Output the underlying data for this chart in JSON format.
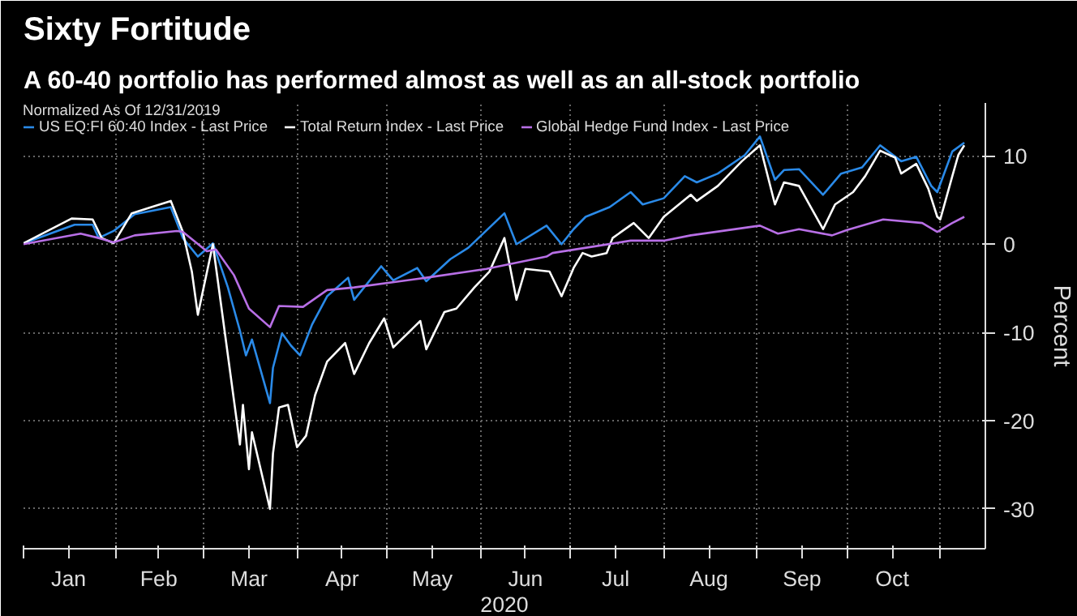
{
  "chart_data": {
    "type": "line",
    "title": "Sixty Fortitude",
    "subtitle": "A 60-40 portfolio has performed almost as well as an all-stock portfolio",
    "xlabel": "2020",
    "ylabel": "Percent",
    "legend_title": "Normalized As Of 12/31/2019",
    "legend": "top",
    "grid": true,
    "line_style": "solid",
    "marker": "none",
    "xlim": [
      "2020-01-01",
      "2020-11-16"
    ],
    "ylim": [
      -34.5,
      16
    ],
    "yticks": [
      -30,
      -20,
      -10,
      0,
      10
    ],
    "xticks": [
      {
        "value": "2020-01-01",
        "label": null
      },
      {
        "value": "2020-01-16",
        "label": "Jan"
      },
      {
        "value": "2020-02-01",
        "label": null
      },
      {
        "value": "2020-02-15",
        "label": "Feb"
      },
      {
        "value": "2020-03-01",
        "label": null
      },
      {
        "value": "2020-03-16",
        "label": "Mar"
      },
      {
        "value": "2020-04-01",
        "label": null
      },
      {
        "value": "2020-04-16",
        "label": "Apr"
      },
      {
        "value": "2020-05-01",
        "label": null
      },
      {
        "value": "2020-05-16",
        "label": "May"
      },
      {
        "value": "2020-06-01",
        "label": null
      },
      {
        "value": "2020-06-16",
        "label": "Jun"
      },
      {
        "value": "2020-07-01",
        "label": null
      },
      {
        "value": "2020-07-16",
        "label": "Jul"
      },
      {
        "value": "2020-08-01",
        "label": null
      },
      {
        "value": "2020-08-16",
        "label": "Aug"
      },
      {
        "value": "2020-09-01",
        "label": null
      },
      {
        "value": "2020-09-16",
        "label": "Sep"
      },
      {
        "value": "2020-10-01",
        "label": null
      },
      {
        "value": "2020-10-16",
        "label": "Oct"
      },
      {
        "value": "2020-11-01",
        "label": null
      }
    ],
    "series": [
      {
        "name": "US EQ:FI 60:40 Index - Last Price",
        "color": "#2a8ae8",
        "x": [
          "2020-01-01",
          "2020-01-18",
          "2020-01-24",
          "2020-01-26",
          "2020-01-31",
          "2020-02-07",
          "2020-02-19",
          "2020-02-23",
          "2020-02-28",
          "2020-03-04",
          "2020-03-09",
          "2020-03-13",
          "2020-03-15",
          "2020-03-17",
          "2020-03-23",
          "2020-03-24",
          "2020-03-27",
          "2020-03-30",
          "2020-04-02",
          "2020-04-06",
          "2020-04-11",
          "2020-04-18",
          "2020-04-20",
          "2020-04-29",
          "2020-05-03",
          "2020-05-11",
          "2020-05-14",
          "2020-05-22",
          "2020-05-28",
          "2020-06-09",
          "2020-06-13",
          "2020-06-23",
          "2020-06-28",
          "2020-07-02",
          "2020-07-06",
          "2020-07-14",
          "2020-07-21",
          "2020-07-25",
          "2020-08-01",
          "2020-08-08",
          "2020-08-12",
          "2020-08-19",
          "2020-08-28",
          "2020-09-02",
          "2020-09-07",
          "2020-09-10",
          "2020-09-15",
          "2020-09-23",
          "2020-09-29",
          "2020-10-06",
          "2020-10-12",
          "2020-10-19",
          "2020-10-24",
          "2020-10-29",
          "2020-10-31",
          "2020-11-05",
          "2020-11-09"
        ],
        "values": [
          0.1,
          2.2,
          2.2,
          0.7,
          1.5,
          3.4,
          4.2,
          0.7,
          -1.4,
          0.1,
          -4.9,
          -9.8,
          -12.6,
          -10.8,
          -18.0,
          -14.0,
          -10.1,
          -11.5,
          -12.6,
          -9.1,
          -5.9,
          -3.8,
          -6.3,
          -2.5,
          -4.1,
          -2.7,
          -4.2,
          -1.7,
          -0.4,
          3.5,
          0,
          2.1,
          0,
          1.7,
          3.1,
          4.2,
          5.9,
          4.5,
          5.2,
          7.7,
          7.0,
          8.0,
          10.1,
          12.2,
          7.3,
          8.4,
          8.5,
          5.6,
          8.0,
          8.7,
          11.2,
          9.4,
          9.9,
          6.6,
          5.9,
          10.5,
          11.5
        ]
      },
      {
        "name": "Total Return Index - Last Price",
        "color": "#ffffff",
        "x": [
          "2020-01-01",
          "2020-01-17",
          "2020-01-24",
          "2020-01-27",
          "2020-01-31",
          "2020-02-06",
          "2020-02-19",
          "2020-02-23",
          "2020-02-26",
          "2020-02-28",
          "2020-03-04",
          "2020-03-09",
          "2020-03-13",
          "2020-03-14",
          "2020-03-16",
          "2020-03-17",
          "2020-03-23",
          "2020-03-24",
          "2020-03-26",
          "2020-03-29",
          "2020-04-01",
          "2020-04-04",
          "2020-04-07",
          "2020-04-11",
          "2020-04-17",
          "2020-04-20",
          "2020-04-25",
          "2020-04-30",
          "2020-05-03",
          "2020-05-12",
          "2020-05-14",
          "2020-05-20",
          "2020-05-24",
          "2020-05-30",
          "2020-06-04",
          "2020-06-09",
          "2020-06-13",
          "2020-06-16",
          "2020-06-24",
          "2020-06-28",
          "2020-07-02",
          "2020-07-05",
          "2020-07-08",
          "2020-07-13",
          "2020-07-15",
          "2020-07-22",
          "2020-07-27",
          "2020-08-01",
          "2020-08-10",
          "2020-08-12",
          "2020-08-19",
          "2020-08-27",
          "2020-09-02",
          "2020-09-07",
          "2020-09-10",
          "2020-09-15",
          "2020-09-23",
          "2020-09-27",
          "2020-10-03",
          "2020-10-07",
          "2020-10-12",
          "2020-10-17",
          "2020-10-19",
          "2020-10-24",
          "2020-10-28",
          "2020-10-31",
          "2020-11-01",
          "2020-11-05",
          "2020-11-07",
          "2020-11-09"
        ],
        "values": [
          0.1,
          2.9,
          2.8,
          0.7,
          0.1,
          3.5,
          4.9,
          1.4,
          -3.1,
          -8.0,
          0,
          -12.6,
          -22.7,
          -18.2,
          -25.5,
          -21.3,
          -30.0,
          -23.7,
          -18.5,
          -18.2,
          -23.0,
          -21.7,
          -17.1,
          -13.3,
          -11.2,
          -14.7,
          -11.2,
          -8.4,
          -11.7,
          -8.7,
          -11.9,
          -7.7,
          -7.3,
          -4.9,
          -3.1,
          0.7,
          -6.3,
          -2.8,
          -3.1,
          -5.9,
          -2.7,
          -1.0,
          -1.4,
          -1.0,
          0.7,
          2.4,
          0.7,
          3.1,
          5.6,
          4.9,
          6.6,
          9.4,
          11.2,
          4.5,
          7.0,
          6.6,
          1.7,
          4.5,
          5.9,
          7.7,
          10.6,
          9.8,
          8.0,
          9.1,
          6.3,
          3.1,
          2.8,
          7.7,
          10.1,
          11.2
        ]
      },
      {
        "name": "Global Hedge Fund Index - Last Price",
        "color": "#b86fe6",
        "x": [
          "2020-01-01",
          "2020-01-20",
          "2020-01-26",
          "2020-01-31",
          "2020-02-07",
          "2020-02-21",
          "2020-02-23",
          "2020-03-02",
          "2020-03-05",
          "2020-03-11",
          "2020-03-16",
          "2020-03-23",
          "2020-03-26",
          "2020-04-03",
          "2020-04-11",
          "2020-04-20",
          "2020-05-14",
          "2020-06-03",
          "2020-06-23",
          "2020-06-25",
          "2020-07-21",
          "2020-08-01",
          "2020-08-10",
          "2020-09-02",
          "2020-09-08",
          "2020-09-15",
          "2020-09-26",
          "2020-10-01",
          "2020-10-13",
          "2020-10-26",
          "2020-10-31",
          "2020-11-05",
          "2020-11-09"
        ],
        "values": [
          0,
          1.2,
          0.7,
          0.2,
          1.0,
          1.5,
          1.4,
          -0.8,
          -0.6,
          -3.5,
          -7.3,
          -9.4,
          -7.0,
          -7.1,
          -5.2,
          -4.9,
          -3.8,
          -2.8,
          -1.4,
          -1.0,
          0.4,
          0.4,
          1.0,
          2.1,
          1.2,
          1.7,
          1.0,
          1.6,
          2.8,
          2.4,
          1.4,
          2.4,
          3.1
        ]
      }
    ]
  }
}
